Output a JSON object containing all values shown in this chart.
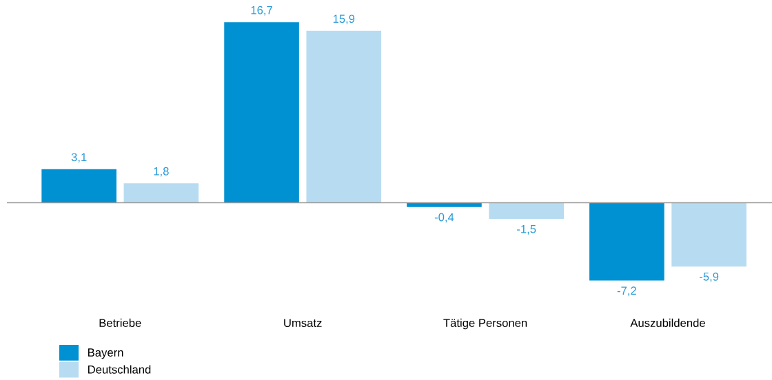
{
  "chart_data": {
    "type": "bar",
    "categories": [
      "Betriebe",
      "Umsatz",
      "Tätige Personen",
      "Auszubildende"
    ],
    "series": [
      {
        "name": "Bayern",
        "color": "#0091d2",
        "values": [
          3.1,
          16.7,
          -0.4,
          -7.2
        ],
        "value_labels": [
          "3,1",
          "16,7",
          "-0,4",
          "-7,2"
        ]
      },
      {
        "name": "Deutschland",
        "color": "#b7dcf1",
        "values": [
          1.8,
          15.9,
          -1.5,
          -5.9
        ],
        "value_labels": [
          "1,8",
          "15,9",
          "-1,5",
          "-5,9"
        ]
      }
    ],
    "legend": "bottom left",
    "grid": false
  }
}
